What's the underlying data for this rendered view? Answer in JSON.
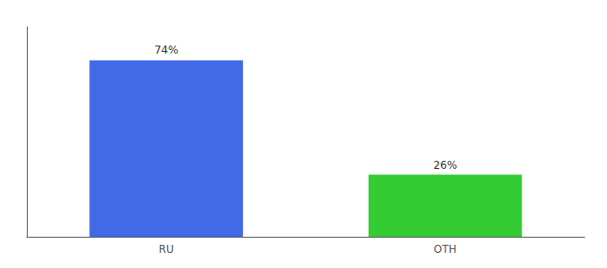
{
  "chart_data": {
    "type": "bar",
    "categories": [
      "RU",
      "OTH"
    ],
    "values": [
      74,
      26
    ],
    "value_labels": [
      "74%",
      "26%"
    ],
    "colors": [
      "#4169e8",
      "#33cc33"
    ],
    "ylim": [
      0,
      88
    ],
    "data_labels": true,
    "tick_labels": "x",
    "grid": false
  }
}
